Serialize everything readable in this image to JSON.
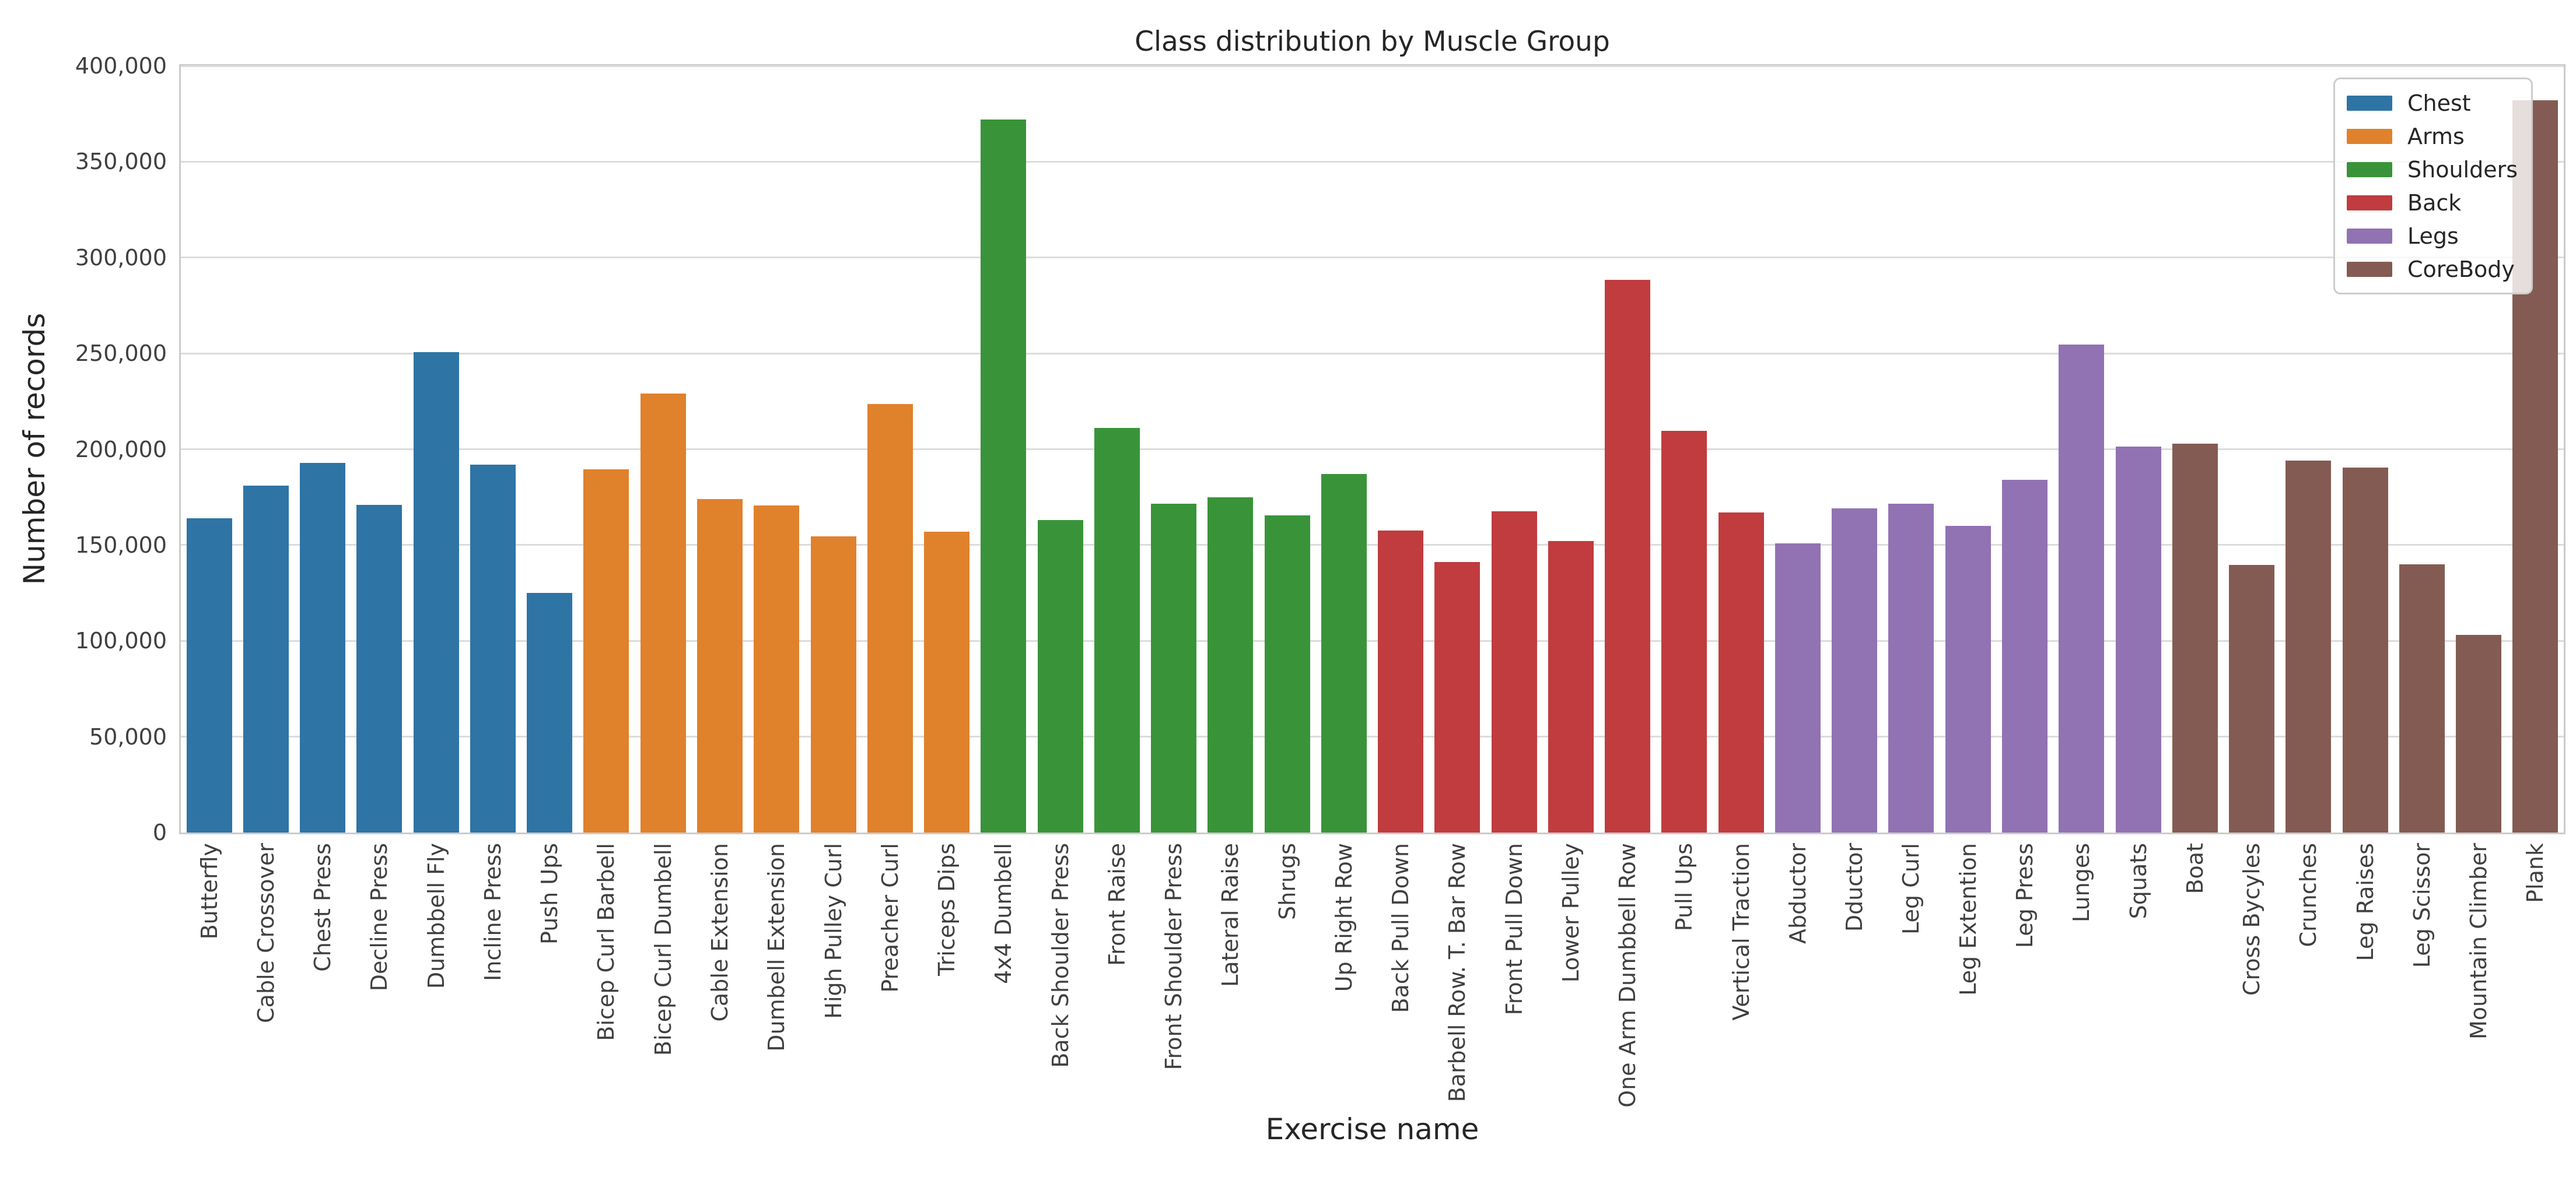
{
  "figure": {
    "title": "Class distribution by Muscle Group",
    "xlabel": "Exercise name",
    "ylabel": "Number of records"
  },
  "chart_data": {
    "type": "bar",
    "title": "Class distribution by Muscle Group",
    "xlabel": "Exercise name",
    "ylabel": "Number of records",
    "ylim": [
      0,
      400000
    ],
    "ytick_step": 50000,
    "ytick_labels": [
      "0",
      "50,000",
      "100,000",
      "150,000",
      "200,000",
      "250,000",
      "300,000",
      "350,000",
      "400,000"
    ],
    "grid": true,
    "legend_position": "upper right",
    "groups": [
      {
        "name": "Chest",
        "color": "#2E74A5"
      },
      {
        "name": "Arms",
        "color": "#E0812C"
      },
      {
        "name": "Shoulders",
        "color": "#399439"
      },
      {
        "name": "Back",
        "color": "#C03C3E"
      },
      {
        "name": "Legs",
        "color": "#9172B2"
      },
      {
        "name": "CoreBody",
        "color": "#845B52"
      }
    ],
    "bars": [
      {
        "label": "Butterfly",
        "group": "Chest",
        "value": 164000
      },
      {
        "label": "Cable Crossover",
        "group": "Chest",
        "value": 181000
      },
      {
        "label": "Chest Press",
        "group": "Chest",
        "value": 193000
      },
      {
        "label": "Decline Press",
        "group": "Chest",
        "value": 171000
      },
      {
        "label": "Dumbbell Fly",
        "group": "Chest",
        "value": 250500
      },
      {
        "label": "Incline Press",
        "group": "Chest",
        "value": 192000
      },
      {
        "label": "Push Ups",
        "group": "Chest",
        "value": 125000
      },
      {
        "label": "Bicep Curl Barbell",
        "group": "Arms",
        "value": 189500
      },
      {
        "label": "Bicep Curl Dumbell",
        "group": "Arms",
        "value": 229000
      },
      {
        "label": "Cable Extension",
        "group": "Arms",
        "value": 174000
      },
      {
        "label": "Dumbell Extension",
        "group": "Arms",
        "value": 170500
      },
      {
        "label": "High Pulley Curl",
        "group": "Arms",
        "value": 154500
      },
      {
        "label": "Preacher Curl",
        "group": "Arms",
        "value": 223500
      },
      {
        "label": "Triceps Dips",
        "group": "Arms",
        "value": 157000
      },
      {
        "label": "4x4 Dumbell",
        "group": "Shoulders",
        "value": 372000
      },
      {
        "label": "Back Shoulder Press",
        "group": "Shoulders",
        "value": 163000
      },
      {
        "label": "Front Raise",
        "group": "Shoulders",
        "value": 211000
      },
      {
        "label": "Front Shoulder Press",
        "group": "Shoulders",
        "value": 171500
      },
      {
        "label": "Lateral Raise",
        "group": "Shoulders",
        "value": 175000
      },
      {
        "label": "Shrugs",
        "group": "Shoulders",
        "value": 165500
      },
      {
        "label": "Up Right Row",
        "group": "Shoulders",
        "value": 187000
      },
      {
        "label": "Back Pull Down",
        "group": "Back",
        "value": 157500
      },
      {
        "label": "Barbell Row. T. Bar Row",
        "group": "Back",
        "value": 141000
      },
      {
        "label": "Front Pull Down",
        "group": "Back",
        "value": 167500
      },
      {
        "label": "Lower Pulley",
        "group": "Back",
        "value": 152000
      },
      {
        "label": "One Arm Dumbbell Row",
        "group": "Back",
        "value": 288500
      },
      {
        "label": "Pull Ups",
        "group": "Back",
        "value": 209500
      },
      {
        "label": "Vertical Traction",
        "group": "Back",
        "value": 167000
      },
      {
        "label": "Abductor",
        "group": "Legs",
        "value": 151000
      },
      {
        "label": "Dductor",
        "group": "Legs",
        "value": 169000
      },
      {
        "label": "Leg Curl",
        "group": "Legs",
        "value": 171500
      },
      {
        "label": "Leg Extention",
        "group": "Legs",
        "value": 160000
      },
      {
        "label": "Leg Press",
        "group": "Legs",
        "value": 184000
      },
      {
        "label": "Lunges",
        "group": "Legs",
        "value": 254500
      },
      {
        "label": "Squats",
        "group": "Legs",
        "value": 201500
      },
      {
        "label": "Boat",
        "group": "CoreBody",
        "value": 203000
      },
      {
        "label": "Cross Bycyles",
        "group": "CoreBody",
        "value": 139500
      },
      {
        "label": "Crunches",
        "group": "CoreBody",
        "value": 194000
      },
      {
        "label": "Leg Raises",
        "group": "CoreBody",
        "value": 190500
      },
      {
        "label": "Leg Scissor",
        "group": "CoreBody",
        "value": 140000
      },
      {
        "label": "Mountain Climber",
        "group": "CoreBody",
        "value": 103000
      },
      {
        "label": "Plank",
        "group": "CoreBody",
        "value": 382000
      }
    ]
  }
}
